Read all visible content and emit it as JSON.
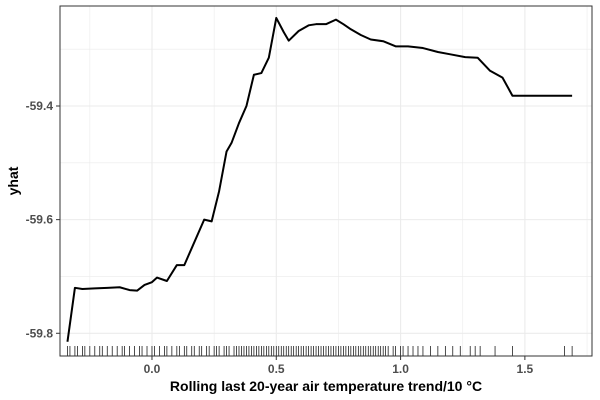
{
  "chart_data": {
    "type": "line",
    "title": "",
    "xlabel": "Rolling last 20-year air temperature trend/10 °C",
    "ylabel": "yhat",
    "xlim": [
      -0.37,
      1.77
    ],
    "ylim": [
      -59.84,
      -59.224
    ],
    "x_ticks": [
      0.0,
      0.5,
      1.0,
      1.5
    ],
    "x_tick_labels": [
      "0.0",
      "0.5",
      "1.0",
      "1.5"
    ],
    "y_ticks": [
      -59.8,
      -59.6,
      -59.4
    ],
    "y_tick_labels": [
      "-59.8",
      "-59.6",
      "-59.4"
    ],
    "grid": true,
    "colors": {
      "line": "#000000",
      "grid": "#ebebeb",
      "panel_border": "#333333",
      "rug": "#000000"
    },
    "series": [
      {
        "x": [
          -0.34,
          -0.31,
          -0.28,
          -0.23,
          -0.18,
          -0.13,
          -0.09,
          -0.06,
          -0.03,
          0.0,
          0.02,
          0.06,
          0.1,
          0.13,
          0.16,
          0.21,
          0.24,
          0.27,
          0.3,
          0.32,
          0.35,
          0.38,
          0.41,
          0.44,
          0.47,
          0.5,
          0.53,
          0.55,
          0.59,
          0.63,
          0.66,
          0.7,
          0.74,
          0.77,
          0.8,
          0.84,
          0.88,
          0.93,
          0.98,
          1.03,
          1.09,
          1.15,
          1.2,
          1.26,
          1.31,
          1.36,
          1.41,
          1.45,
          1.49,
          1.6,
          1.69
        ],
        "y": [
          -59.815,
          -59.72,
          -59.722,
          -59.721,
          -59.72,
          -59.719,
          -59.724,
          -59.725,
          -59.715,
          -59.71,
          -59.702,
          -59.708,
          -59.68,
          -59.68,
          -59.65,
          -59.6,
          -59.603,
          -59.55,
          -59.48,
          -59.465,
          -59.43,
          -59.4,
          -59.345,
          -59.342,
          -59.315,
          -59.245,
          -59.27,
          -59.285,
          -59.268,
          -59.258,
          -59.256,
          -59.256,
          -59.248,
          -59.256,
          -59.265,
          -59.275,
          -59.283,
          -59.286,
          -59.295,
          -59.295,
          -59.298,
          -59.305,
          -59.309,
          -59.314,
          -59.315,
          -59.338,
          -59.35,
          -59.382,
          -59.382,
          -59.382,
          -59.382
        ]
      }
    ],
    "rug_x": [
      -0.34,
      -0.33,
      -0.31,
      -0.3,
      -0.28,
      -0.27,
      -0.25,
      -0.23,
      -0.21,
      -0.2,
      -0.18,
      -0.16,
      -0.14,
      -0.12,
      -0.11,
      -0.09,
      -0.07,
      -0.05,
      -0.04,
      -0.02,
      0.0,
      0.01,
      0.03,
      0.05,
      0.06,
      0.08,
      0.1,
      0.11,
      0.13,
      0.14,
      0.16,
      0.17,
      0.19,
      0.2,
      0.22,
      0.23,
      0.25,
      0.26,
      0.27,
      0.29,
      0.3,
      0.31,
      0.33,
      0.34,
      0.35,
      0.36,
      0.37,
      0.38,
      0.39,
      0.4,
      0.41,
      0.42,
      0.43,
      0.44,
      0.45,
      0.46,
      0.47,
      0.48,
      0.49,
      0.5,
      0.51,
      0.52,
      0.53,
      0.54,
      0.55,
      0.56,
      0.57,
      0.58,
      0.59,
      0.6,
      0.61,
      0.62,
      0.63,
      0.64,
      0.65,
      0.66,
      0.67,
      0.68,
      0.69,
      0.7,
      0.71,
      0.72,
      0.73,
      0.74,
      0.75,
      0.76,
      0.77,
      0.78,
      0.79,
      0.8,
      0.81,
      0.82,
      0.83,
      0.84,
      0.85,
      0.86,
      0.87,
      0.88,
      0.89,
      0.9,
      0.91,
      0.92,
      0.93,
      0.94,
      0.95,
      0.97,
      0.98,
      1.0,
      1.01,
      1.03,
      1.05,
      1.07,
      1.09,
      1.12,
      1.15,
      1.18,
      1.21,
      1.24,
      1.28,
      1.3,
      1.32,
      1.38,
      1.45,
      1.66,
      1.69
    ]
  }
}
